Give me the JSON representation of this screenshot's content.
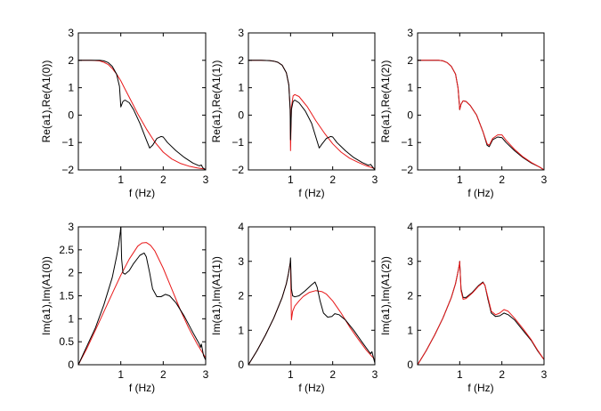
{
  "chart_data": [
    {
      "type": "line",
      "xlabel": "f (Hz)",
      "ylabel": "Re(a1),Re(A1(0))",
      "xlim": [
        0,
        3
      ],
      "ylim": [
        -2,
        3
      ],
      "xticks": [
        1,
        2,
        3
      ],
      "xtick_labels": [
        "1",
        "2",
        "3"
      ],
      "yticks": [
        -2,
        -1,
        0,
        1,
        2,
        3
      ],
      "ytick_labels": [
        "−2",
        "−1",
        "0",
        "1",
        "2",
        "3"
      ],
      "series": [
        {
          "name": "red",
          "color": "#e8191a",
          "x": [
            0,
            0.3,
            0.5,
            0.6,
            0.7,
            0.8,
            0.9,
            1.0,
            1.1,
            1.2,
            1.4,
            1.6,
            1.8,
            2.0,
            2.2,
            2.4,
            2.6,
            2.8,
            3.0
          ],
          "y": [
            2.0,
            2.0,
            1.98,
            1.93,
            1.85,
            1.7,
            1.5,
            1.25,
            0.95,
            0.65,
            0.05,
            -0.5,
            -0.98,
            -1.35,
            -1.6,
            -1.76,
            -1.86,
            -1.93,
            -1.97
          ]
        },
        {
          "name": "black",
          "color": "#000000",
          "x": [
            0,
            0.3,
            0.5,
            0.6,
            0.7,
            0.8,
            0.9,
            0.97,
            1.0,
            1.05,
            1.1,
            1.2,
            1.3,
            1.45,
            1.6,
            1.68,
            1.75,
            1.85,
            1.95,
            2.0,
            2.1,
            2.3,
            2.5,
            2.7,
            2.85,
            2.9,
            2.93,
            3.0
          ],
          "y": [
            2.0,
            2.0,
            2.0,
            1.98,
            1.92,
            1.78,
            1.5,
            1.05,
            0.3,
            0.5,
            0.55,
            0.45,
            0.2,
            -0.3,
            -0.9,
            -1.2,
            -1.1,
            -0.85,
            -0.78,
            -0.8,
            -1.0,
            -1.3,
            -1.55,
            -1.75,
            -1.85,
            -1.82,
            -1.92,
            -2.0
          ]
        }
      ]
    },
    {
      "type": "line",
      "xlabel": "f (Hz)",
      "ylabel": "Re(a1),Re(A1(1))",
      "xlim": [
        0,
        3
      ],
      "ylim": [
        -2,
        3
      ],
      "xticks": [
        1,
        2,
        3
      ],
      "xtick_labels": [
        "1",
        "2",
        "3"
      ],
      "yticks": [
        -2,
        -1,
        0,
        1,
        2,
        3
      ],
      "ytick_labels": [
        "−2",
        "−1",
        "0",
        "1",
        "2",
        "3"
      ],
      "series": [
        {
          "name": "red",
          "color": "#e8191a",
          "x": [
            0,
            0.3,
            0.5,
            0.6,
            0.7,
            0.8,
            0.9,
            0.96,
            0.99,
            1.0,
            1.02,
            1.06,
            1.1,
            1.2,
            1.4,
            1.6,
            1.8,
            2.0,
            2.2,
            2.4,
            2.6,
            2.8,
            3.0
          ],
          "y": [
            2.0,
            2.0,
            1.99,
            1.97,
            1.93,
            1.82,
            1.55,
            1.1,
            0.2,
            -1.3,
            0.3,
            0.7,
            0.75,
            0.68,
            0.3,
            -0.2,
            -0.65,
            -1.05,
            -1.35,
            -1.57,
            -1.72,
            -1.85,
            -1.95
          ]
        },
        {
          "name": "black",
          "color": "#000000",
          "x": [
            0,
            0.3,
            0.5,
            0.6,
            0.7,
            0.8,
            0.9,
            0.96,
            0.99,
            1.0,
            1.02,
            1.06,
            1.1,
            1.2,
            1.35,
            1.5,
            1.6,
            1.68,
            1.75,
            1.85,
            1.95,
            2.0,
            2.1,
            2.3,
            2.5,
            2.7,
            2.85,
            2.9,
            3.0
          ],
          "y": [
            2.0,
            2.0,
            1.99,
            1.97,
            1.93,
            1.82,
            1.55,
            1.1,
            0.2,
            -0.9,
            0.2,
            0.5,
            0.55,
            0.45,
            0.15,
            -0.3,
            -0.8,
            -1.2,
            -1.05,
            -0.85,
            -0.78,
            -0.8,
            -1.0,
            -1.3,
            -1.55,
            -1.73,
            -1.83,
            -1.8,
            -2.0
          ]
        }
      ]
    },
    {
      "type": "line",
      "xlabel": "f (Hz)",
      "ylabel": "Re(a1),Re(A1(2))",
      "xlim": [
        0,
        3
      ],
      "ylim": [
        -2,
        3
      ],
      "xticks": [
        1,
        2,
        3
      ],
      "xtick_labels": [
        "1",
        "2",
        "3"
      ],
      "yticks": [
        -2,
        -1,
        0,
        1,
        2,
        3
      ],
      "ytick_labels": [
        "−2",
        "−1",
        "0",
        "1",
        "2",
        "3"
      ],
      "series": [
        {
          "name": "black",
          "color": "#000000",
          "x": [
            0,
            0.3,
            0.5,
            0.6,
            0.7,
            0.8,
            0.9,
            0.96,
            0.99,
            1.0,
            1.03,
            1.08,
            1.15,
            1.25,
            1.4,
            1.55,
            1.65,
            1.7,
            1.78,
            1.9,
            2.0,
            2.1,
            2.3,
            2.5,
            2.7,
            2.9,
            3.0
          ],
          "y": [
            2.0,
            2.0,
            2.0,
            1.98,
            1.92,
            1.78,
            1.5,
            1.0,
            0.4,
            0.2,
            0.4,
            0.52,
            0.5,
            0.35,
            0.0,
            -0.6,
            -1.1,
            -1.15,
            -0.9,
            -0.8,
            -0.82,
            -1.0,
            -1.3,
            -1.55,
            -1.75,
            -1.9,
            -2.0
          ]
        },
        {
          "name": "red",
          "color": "#e8191a",
          "x": [
            0,
            0.3,
            0.5,
            0.6,
            0.7,
            0.8,
            0.9,
            0.96,
            0.99,
            1.0,
            1.03,
            1.08,
            1.15,
            1.25,
            1.4,
            1.55,
            1.65,
            1.7,
            1.78,
            1.9,
            2.0,
            2.1,
            2.3,
            2.5,
            2.7,
            2.9,
            3.0
          ],
          "y": [
            2.0,
            2.0,
            2.0,
            1.98,
            1.92,
            1.78,
            1.5,
            1.0,
            0.4,
            0.2,
            0.4,
            0.52,
            0.5,
            0.35,
            0.0,
            -0.6,
            -1.05,
            -1.1,
            -0.85,
            -0.72,
            -0.72,
            -0.92,
            -1.25,
            -1.52,
            -1.73,
            -1.9,
            -2.0
          ]
        }
      ]
    },
    {
      "type": "line",
      "xlabel": "f (Hz)",
      "ylabel": "Im(a1),Im(A1(0))",
      "xlim": [
        0,
        3
      ],
      "ylim": [
        0,
        3
      ],
      "xticks": [
        1,
        2,
        3
      ],
      "xtick_labels": [
        "1",
        "2",
        "3"
      ],
      "yticks": [
        0,
        0.5,
        1,
        1.5,
        2,
        2.5,
        3
      ],
      "ytick_labels": [
        "0",
        "0.5",
        "1",
        "1.5",
        "2",
        "2.5",
        "3"
      ],
      "series": [
        {
          "name": "red",
          "color": "#e8191a",
          "x": [
            0,
            0.2,
            0.4,
            0.6,
            0.8,
            1.0,
            1.2,
            1.4,
            1.5,
            1.6,
            1.7,
            1.8,
            2.0,
            2.2,
            2.4,
            2.6,
            2.8,
            3.0
          ],
          "y": [
            0.0,
            0.35,
            0.75,
            1.15,
            1.55,
            1.95,
            2.3,
            2.58,
            2.65,
            2.66,
            2.6,
            2.48,
            2.1,
            1.65,
            1.2,
            0.8,
            0.45,
            0.15
          ]
        },
        {
          "name": "black",
          "color": "#000000",
          "x": [
            0,
            0.2,
            0.4,
            0.6,
            0.8,
            0.9,
            0.95,
            0.99,
            1.0,
            1.02,
            1.05,
            1.1,
            1.2,
            1.3,
            1.45,
            1.55,
            1.6,
            1.68,
            1.75,
            1.85,
            1.95,
            2.05,
            2.15,
            2.3,
            2.5,
            2.7,
            2.85,
            2.88,
            2.9,
            2.95,
            3.0
          ],
          "y": [
            0.0,
            0.4,
            0.8,
            1.3,
            1.9,
            2.35,
            2.6,
            2.9,
            3.0,
            2.3,
            2.0,
            1.97,
            2.05,
            2.2,
            2.38,
            2.43,
            2.35,
            2.0,
            1.65,
            1.48,
            1.48,
            1.53,
            1.5,
            1.35,
            1.05,
            0.7,
            0.45,
            0.38,
            0.45,
            0.2,
            0.1
          ]
        }
      ]
    },
    {
      "type": "line",
      "xlabel": "f (Hz)",
      "ylabel": "Im(a1),Im(A1(1))",
      "xlim": [
        0,
        3
      ],
      "ylim": [
        0,
        4
      ],
      "xticks": [
        1,
        2,
        3
      ],
      "xtick_labels": [
        "1",
        "2",
        "3"
      ],
      "yticks": [
        0,
        1,
        2,
        3,
        4
      ],
      "ytick_labels": [
        "0",
        "1",
        "2",
        "3",
        "4"
      ],
      "series": [
        {
          "name": "red",
          "color": "#e8191a",
          "x": [
            0,
            0.2,
            0.4,
            0.6,
            0.8,
            0.9,
            0.95,
            0.99,
            1.0,
            1.02,
            1.05,
            1.1,
            1.2,
            1.3,
            1.45,
            1.6,
            1.75,
            1.85,
            2.0,
            2.2,
            2.4,
            2.6,
            2.8,
            3.0
          ],
          "y": [
            0.0,
            0.4,
            0.85,
            1.35,
            1.95,
            2.35,
            2.65,
            2.95,
            3.0,
            1.3,
            1.55,
            1.7,
            1.85,
            1.98,
            2.1,
            2.15,
            2.12,
            2.05,
            1.85,
            1.5,
            1.1,
            0.75,
            0.42,
            0.15
          ]
        },
        {
          "name": "black",
          "color": "#000000",
          "x": [
            0,
            0.2,
            0.4,
            0.6,
            0.8,
            0.9,
            0.95,
            0.99,
            1.0,
            1.02,
            1.05,
            1.1,
            1.2,
            1.35,
            1.5,
            1.58,
            1.63,
            1.7,
            1.78,
            1.88,
            1.98,
            2.05,
            2.15,
            2.3,
            2.5,
            2.7,
            2.85,
            2.9,
            2.93,
            3.0
          ],
          "y": [
            0.0,
            0.4,
            0.85,
            1.35,
            1.95,
            2.35,
            2.65,
            2.95,
            3.1,
            2.2,
            2.0,
            1.97,
            2.0,
            2.15,
            2.32,
            2.4,
            2.25,
            1.85,
            1.5,
            1.38,
            1.4,
            1.48,
            1.45,
            1.3,
            1.0,
            0.65,
            0.4,
            0.32,
            0.38,
            0.05
          ]
        }
      ]
    },
    {
      "type": "line",
      "xlabel": "f (Hz)",
      "ylabel": "Im(a1),Im(A1(2))",
      "xlim": [
        0,
        3
      ],
      "ylim": [
        0,
        4
      ],
      "xticks": [
        1,
        2,
        3
      ],
      "xtick_labels": [
        "1",
        "2",
        "3"
      ],
      "yticks": [
        0,
        1,
        2,
        3,
        4
      ],
      "ytick_labels": [
        "0",
        "1",
        "2",
        "3",
        "4"
      ],
      "series": [
        {
          "name": "black",
          "color": "#000000",
          "x": [
            0,
            0.2,
            0.4,
            0.6,
            0.8,
            0.9,
            0.95,
            0.99,
            1.0,
            1.03,
            1.08,
            1.15,
            1.3,
            1.45,
            1.55,
            1.6,
            1.67,
            1.75,
            1.85,
            1.95,
            2.05,
            2.15,
            2.3,
            2.5,
            2.7,
            2.85,
            3.0
          ],
          "y": [
            0.0,
            0.4,
            0.85,
            1.35,
            1.95,
            2.35,
            2.65,
            2.9,
            3.0,
            2.2,
            1.95,
            1.95,
            2.1,
            2.3,
            2.4,
            2.3,
            1.9,
            1.5,
            1.4,
            1.42,
            1.5,
            1.45,
            1.3,
            1.0,
            0.7,
            0.4,
            0.15
          ]
        },
        {
          "name": "red",
          "color": "#e8191a",
          "x": [
            0,
            0.2,
            0.4,
            0.6,
            0.8,
            0.9,
            0.95,
            0.99,
            1.0,
            1.03,
            1.08,
            1.15,
            1.3,
            1.45,
            1.55,
            1.6,
            1.67,
            1.75,
            1.85,
            1.95,
            2.05,
            2.15,
            2.3,
            2.5,
            2.7,
            2.85,
            3.0
          ],
          "y": [
            0.0,
            0.4,
            0.85,
            1.35,
            1.95,
            2.35,
            2.65,
            2.9,
            3.0,
            2.15,
            1.9,
            1.92,
            2.08,
            2.28,
            2.38,
            2.3,
            1.95,
            1.55,
            1.45,
            1.5,
            1.6,
            1.55,
            1.35,
            1.05,
            0.72,
            0.42,
            0.15
          ]
        }
      ]
    }
  ]
}
